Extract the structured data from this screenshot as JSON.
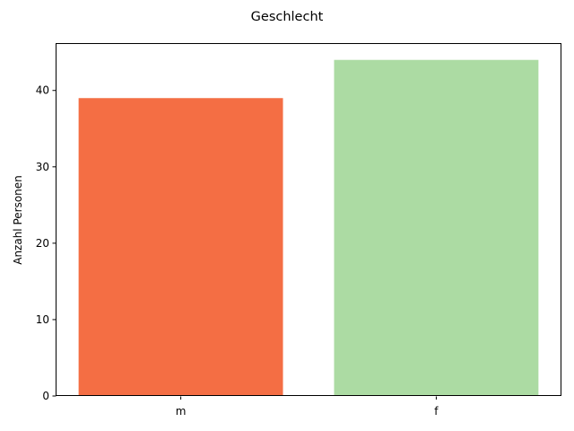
{
  "chart_data": {
    "type": "bar",
    "title": "Geschlecht",
    "xlabel": "",
    "ylabel": "Anzahl Personen",
    "categories": [
      "m",
      "f"
    ],
    "values": [
      39,
      44
    ],
    "colors": [
      "#f46e44",
      "#acdba3"
    ],
    "ylim": [
      0,
      46.2
    ],
    "yticks": [
      0,
      10,
      20,
      30,
      40
    ],
    "grid": false,
    "legend": "none"
  }
}
